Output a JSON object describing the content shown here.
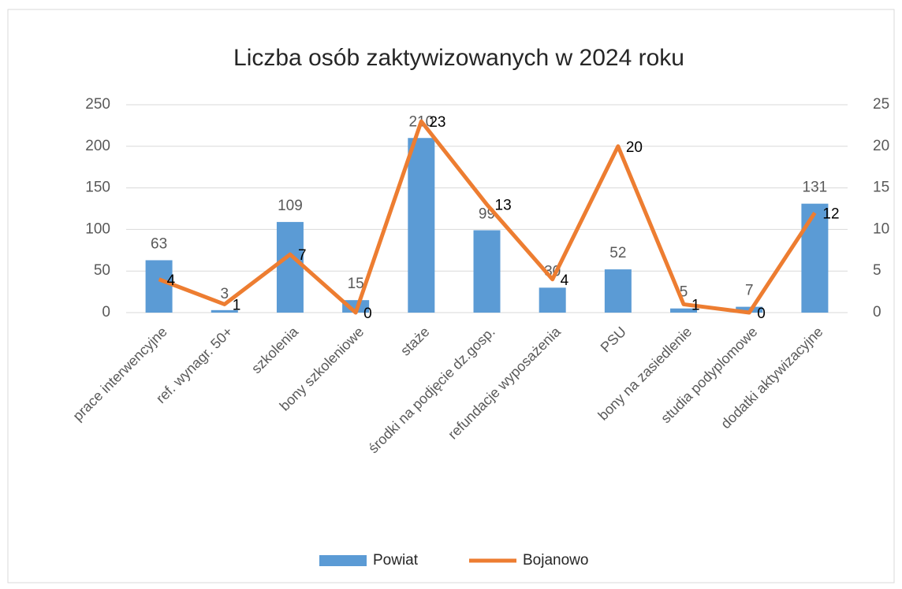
{
  "chart_data": {
    "type": "combo",
    "title": "Liczba osób zaktywizowanych w 2024 roku",
    "categories": [
      "prace interwencyjne",
      "ref. wynagr. 50+",
      "szkolenia",
      "bony szkoleniowe",
      "staże",
      "środki na podjęcie dz.gosp.",
      "refundacje wyposażenia",
      "PSU",
      "bony na zasiedlenie",
      "studia podyplomowe",
      "dodatki aktywizacyjne"
    ],
    "series": [
      {
        "name": "Powiat",
        "type": "bar",
        "color": "#5b9bd5",
        "values": [
          63,
          3,
          109,
          15,
          210,
          99,
          30,
          52,
          5,
          7,
          131
        ]
      },
      {
        "name": "Bojanowo",
        "type": "line",
        "axis": "y2",
        "color": "#ed7d31",
        "values": [
          4,
          1,
          7,
          0,
          23,
          13,
          4,
          20,
          1,
          0,
          12
        ]
      }
    ],
    "ylim": [
      0,
      250
    ],
    "yticks": [
      0,
      50,
      100,
      150,
      200,
      250
    ],
    "y2lim": [
      0,
      25
    ],
    "y2ticks": [
      0,
      5,
      10,
      15,
      20,
      25
    ],
    "grid": true,
    "legend": "bottom"
  }
}
